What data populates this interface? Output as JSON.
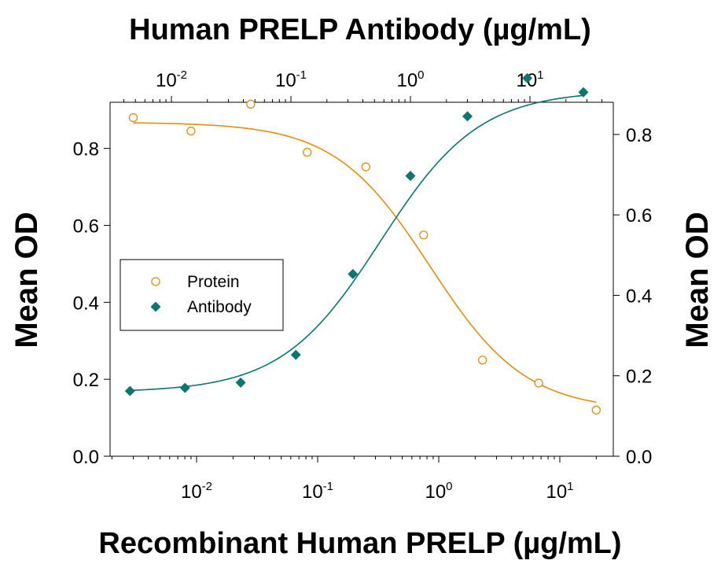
{
  "chart_data": {
    "type": "scatter",
    "title_top": "Human PRELP Antibody (µg/mL)",
    "xlabel": "Recombinant Human PRELP (µg/mL)",
    "ylabel_left": "Mean OD",
    "ylabel_right": "Mean OD",
    "x_scale": "log",
    "x_bottom_ticks": [
      {
        "label": "10",
        "exp": "-2",
        "value": 0.01
      },
      {
        "label": "10",
        "exp": "-1",
        "value": 0.1
      },
      {
        "label": "10",
        "exp": "0",
        "value": 1
      },
      {
        "label": "10",
        "exp": "1",
        "value": 10
      }
    ],
    "x_top_ticks": [
      {
        "label": "10",
        "exp": "-2",
        "value": 0.01
      },
      {
        "label": "10",
        "exp": "-1",
        "value": 0.1
      },
      {
        "label": "10",
        "exp": "0",
        "value": 1
      },
      {
        "label": "10",
        "exp": "1",
        "value": 10
      }
    ],
    "y_left_ticks": [
      "0.0",
      "0.2",
      "0.4",
      "0.6",
      "0.8"
    ],
    "y_right_ticks": [
      "0.0",
      "0.2",
      "0.4",
      "0.6",
      "0.8"
    ],
    "ylim_left": [
      0,
      0.92
    ],
    "ylim_right": [
      0,
      0.88
    ],
    "legend_position": "left-middle",
    "series": [
      {
        "name": "Protein",
        "marker": "open-circle",
        "color": "#E0900A",
        "axis": "bottom-left",
        "x": [
          0.003,
          0.009,
          0.028,
          0.082,
          0.25,
          0.75,
          2.3,
          6.7,
          20
        ],
        "y": [
          0.88,
          0.845,
          0.915,
          0.79,
          0.752,
          0.575,
          0.25,
          0.19,
          0.12
        ],
        "fit": {
          "bottom": 0.118,
          "top": 0.868,
          "ec50": 0.85,
          "hill": 1.1
        }
      },
      {
        "name": "Antibody",
        "marker": "filled-diamond",
        "color": "#0A7670",
        "axis": "top-right",
        "x": [
          0.0045,
          0.013,
          0.038,
          0.11,
          0.33,
          1.0,
          3.0,
          9.5,
          28
        ],
        "y": [
          0.162,
          0.17,
          0.183,
          0.252,
          0.453,
          0.697,
          0.845,
          0.94,
          0.905
        ],
        "fit": {
          "bottom": 0.159,
          "top": 0.909,
          "ec50": 0.56,
          "hill": 1.05
        }
      }
    ]
  }
}
